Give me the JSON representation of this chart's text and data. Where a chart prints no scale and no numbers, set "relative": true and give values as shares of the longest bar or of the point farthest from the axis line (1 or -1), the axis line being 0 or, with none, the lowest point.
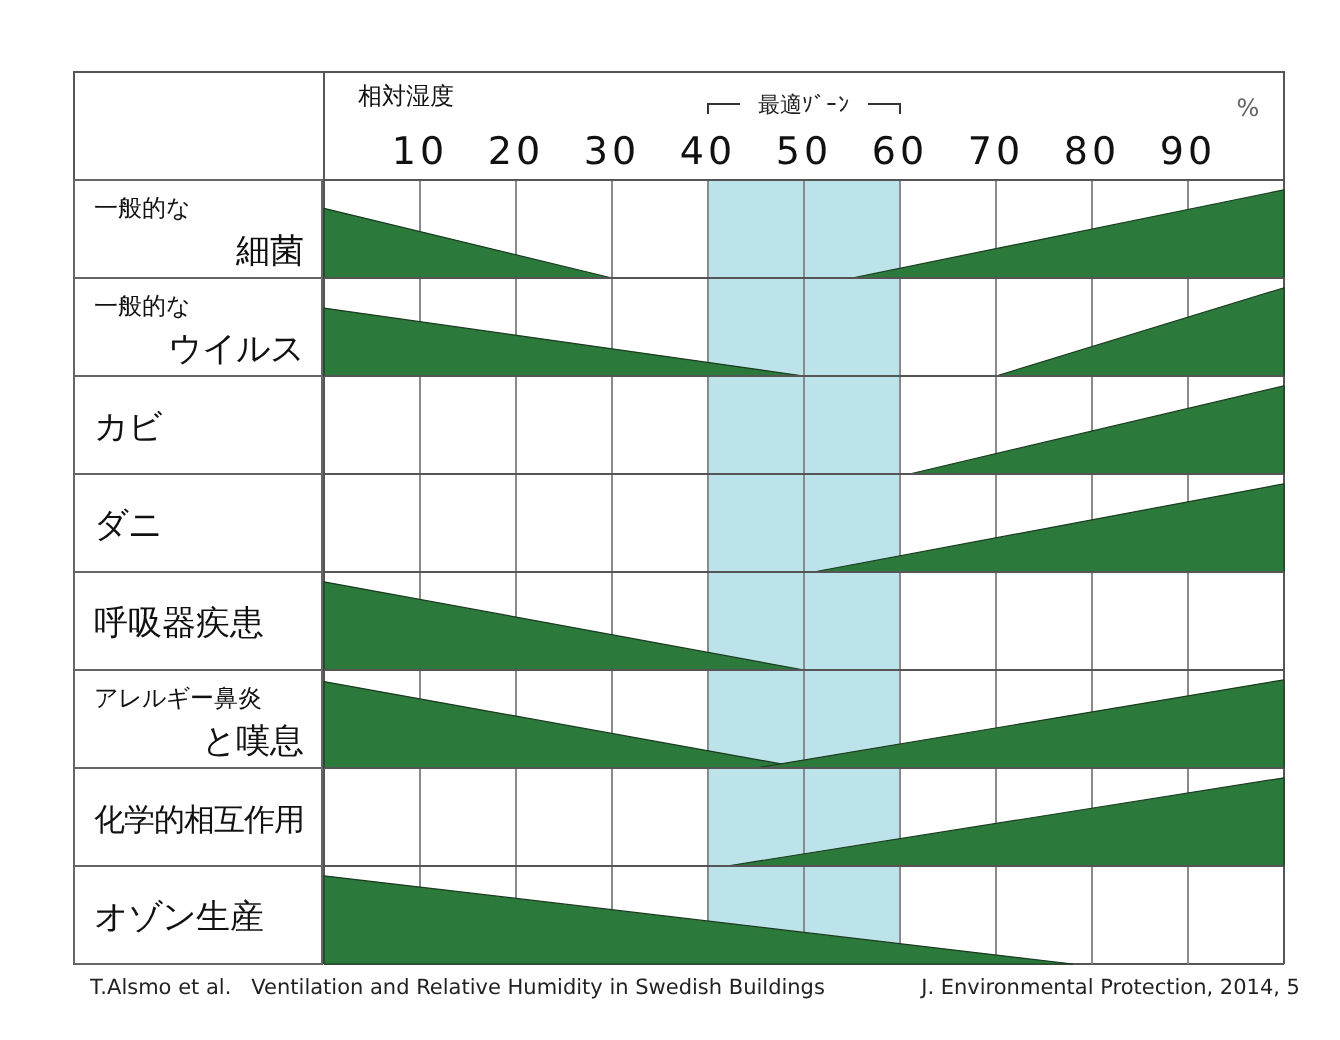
{
  "chart_data": [
    {
      "type": "area",
      "relative": true,
      "ylabel": "一般的な細菌",
      "xlabel": "相対湿度",
      "xlim": [
        0,
        100
      ],
      "xticks": [
        10,
        20,
        30,
        40,
        50,
        60,
        70,
        80,
        90
      ],
      "grid": "x",
      "tick_labels": "x",
      "bands": [
        {
          "axis": "x",
          "from": 40,
          "to": 60,
          "label": "最適ｿﾞｰﾝ",
          "color": "#bde3ea"
        }
      ],
      "annotations": [
        "%"
      ],
      "series": [
        {
          "color": "#2b7a3b",
          "x": [
            0,
            30
          ],
          "values": [
            0.79,
            0
          ]
        },
        {
          "color": "#2b7a3b",
          "x": [
            55,
            100
          ],
          "values": [
            0,
            1
          ]
        }
      ]
    },
    {
      "type": "area",
      "relative": true,
      "ylabel": "一般的なウイルス",
      "xlim": [
        0,
        100
      ],
      "xticks": [
        10,
        20,
        30,
        40,
        50,
        60,
        70,
        80,
        90
      ],
      "grid": "x",
      "tick_labels": false,
      "bands": [
        {
          "axis": "x",
          "from": 40,
          "to": 60,
          "color": "#bde3ea"
        }
      ],
      "series": [
        {
          "color": "#2b7a3b",
          "x": [
            0,
            50
          ],
          "values": [
            0.77,
            0
          ]
        },
        {
          "color": "#2b7a3b",
          "x": [
            70,
            100
          ],
          "values": [
            0,
            1
          ]
        }
      ]
    },
    {
      "type": "area",
      "relative": true,
      "ylabel": "カビ",
      "xlim": [
        0,
        100
      ],
      "xticks": [
        10,
        20,
        30,
        40,
        50,
        60,
        70,
        80,
        90
      ],
      "grid": "x",
      "tick_labels": false,
      "bands": [
        {
          "axis": "x",
          "from": 40,
          "to": 60,
          "color": "#bde3ea"
        }
      ],
      "series": [
        {
          "color": "#2b7a3b",
          "x": [
            61,
            100
          ],
          "values": [
            0,
            1
          ]
        }
      ]
    },
    {
      "type": "area",
      "relative": true,
      "ylabel": "ダニ",
      "xlim": [
        0,
        100
      ],
      "xticks": [
        10,
        20,
        30,
        40,
        50,
        60,
        70,
        80,
        90
      ],
      "grid": "x",
      "tick_labels": false,
      "bands": [
        {
          "axis": "x",
          "from": 40,
          "to": 60,
          "color": "#bde3ea"
        }
      ],
      "series": [
        {
          "color": "#2b7a3b",
          "x": [
            51,
            100
          ],
          "values": [
            0,
            1
          ]
        }
      ]
    },
    {
      "type": "area",
      "relative": true,
      "ylabel": "呼吸器疾患",
      "xlim": [
        0,
        100
      ],
      "xticks": [
        10,
        20,
        30,
        40,
        50,
        60,
        70,
        80,
        90
      ],
      "grid": "x",
      "tick_labels": false,
      "bands": [
        {
          "axis": "x",
          "from": 40,
          "to": 60,
          "color": "#bde3ea"
        }
      ],
      "series": [
        {
          "color": "#2b7a3b",
          "x": [
            0,
            50
          ],
          "values": [
            1,
            0
          ]
        }
      ]
    },
    {
      "type": "area",
      "relative": true,
      "ylabel": "アレルギー鼻炎と嘆息",
      "xlim": [
        0,
        100
      ],
      "xticks": [
        10,
        20,
        30,
        40,
        50,
        60,
        70,
        80,
        90
      ],
      "grid": "x",
      "tick_labels": false,
      "bands": [
        {
          "axis": "x",
          "from": 40,
          "to": 60,
          "color": "#bde3ea"
        }
      ],
      "series": [
        {
          "color": "#2b7a3b",
          "x": [
            0,
            50
          ],
          "values": [
            0.98,
            0
          ]
        },
        {
          "color": "#2b7a3b",
          "x": [
            45,
            100
          ],
          "values": [
            0,
            1
          ]
        }
      ]
    },
    {
      "type": "area",
      "relative": true,
      "ylabel": "化学的相互作用",
      "xlim": [
        0,
        100
      ],
      "xticks": [
        10,
        20,
        30,
        40,
        50,
        60,
        70,
        80,
        90
      ],
      "grid": "x",
      "tick_labels": false,
      "bands": [
        {
          "axis": "x",
          "from": 40,
          "to": 60,
          "color": "#bde3ea"
        }
      ],
      "series": [
        {
          "color": "#2b7a3b",
          "x": [
            42,
            100
          ],
          "values": [
            0,
            1
          ]
        }
      ]
    },
    {
      "type": "area",
      "relative": true,
      "ylabel": "オゾン生産",
      "xlim": [
        0,
        100
      ],
      "xticks": [
        10,
        20,
        30,
        40,
        50,
        60,
        70,
        80,
        90
      ],
      "grid": "x",
      "tick_labels": false,
      "bands": [
        {
          "axis": "x",
          "from": 40,
          "to": 60,
          "color": "#bde3ea"
        }
      ],
      "annotations": [
        "T.Alsmo et al.",
        "Ventilation and Relative Humidity in Swedish Buildings",
        "J. Environmental Protection, 2014, 5"
      ],
      "series": [
        {
          "color": "#2b7a3b",
          "x": [
            0,
            78
          ],
          "values": [
            1,
            0
          ]
        }
      ]
    }
  ]
}
